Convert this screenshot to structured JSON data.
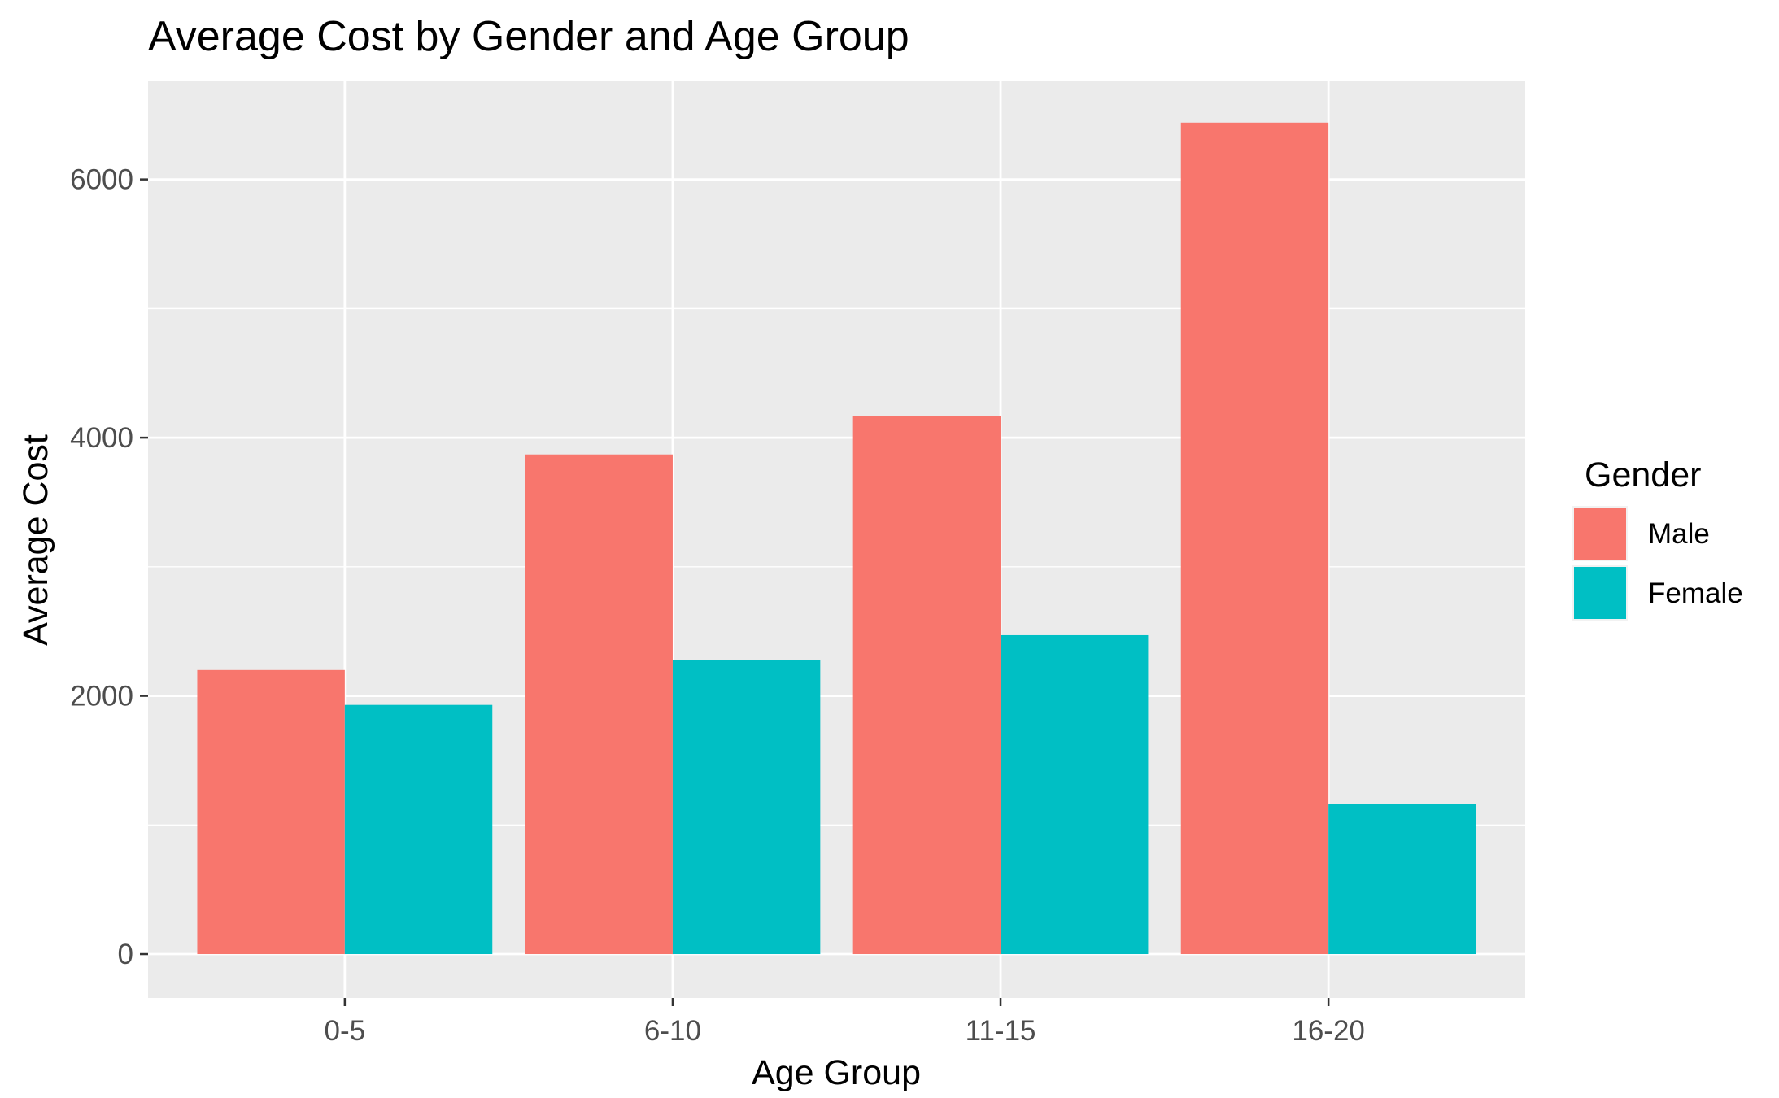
{
  "chart_data": {
    "type": "bar",
    "title": "Average Cost by Gender and Age Group",
    "xlabel": "Age Group",
    "ylabel": "Average Cost",
    "categories": [
      "0-5",
      "6-10",
      "11-15",
      "16-20"
    ],
    "series": [
      {
        "name": "Male",
        "color": "#F8766D",
        "values": [
          2200,
          3870,
          4170,
          6440
        ]
      },
      {
        "name": "Female",
        "color": "#00BFC4",
        "values": [
          1930,
          2280,
          2470,
          1160
        ]
      }
    ],
    "yticks": [
      0,
      2000,
      4000,
      6000
    ],
    "ytick_labels": [
      "0",
      "2000",
      "4000",
      "6000"
    ],
    "ylim": [
      -340,
      6760
    ],
    "grid": true,
    "legend": {
      "title": "Gender",
      "position": "right"
    },
    "colors": {
      "panel_background": "#EBEBEB",
      "grid_line": "#FFFFFF"
    }
  }
}
